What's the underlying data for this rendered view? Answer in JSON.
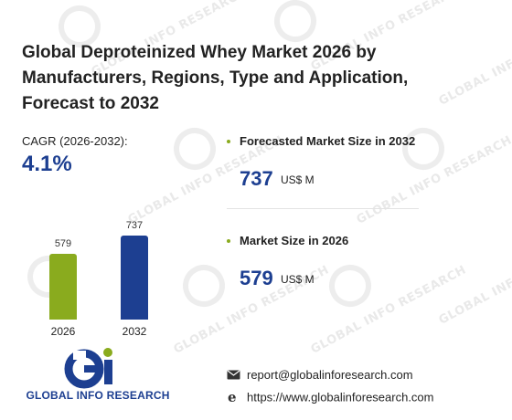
{
  "title": "Global Deproteinized Whey Market 2026 by Manufacturers, Regions, Type and Application, Forecast to 2032",
  "cagr": {
    "label": "CAGR (2026-2032):",
    "value": "4.1%"
  },
  "chart_data": {
    "type": "bar",
    "categories": [
      "2026",
      "2032"
    ],
    "values": [
      579,
      737
    ],
    "colors": [
      "#8aab1e",
      "#1d3f91"
    ]
  },
  "metrics": [
    {
      "title": "Forecasted Market Size in 2032",
      "value": "737",
      "unit": "US$ M"
    },
    {
      "title": "Market Size in 2026",
      "value": "579",
      "unit": "US$ M"
    }
  ],
  "logo": {
    "text": "GLOBAL INFO RESEARCH",
    "mark": "Gi"
  },
  "contact": {
    "email": "report@globalinforesearch.com",
    "website": "https://www.globalinforesearch.com",
    "email_icon": "envelope-icon",
    "website_icon": "globe-icon"
  },
  "watermark": "GLOBAL INFO RESEARCH",
  "colors": {
    "accent_green": "#8aab1e",
    "accent_blue": "#1d3f91"
  }
}
